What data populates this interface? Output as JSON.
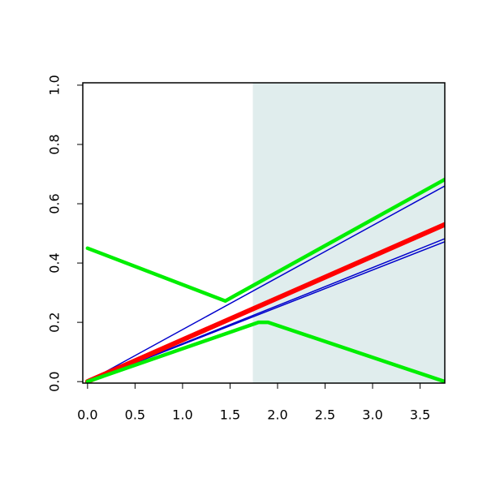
{
  "chart_data": {
    "type": "line",
    "xlim": [
      -0.05,
      3.76
    ],
    "ylim": [
      -0.005,
      1.008
    ],
    "xticks": [
      {
        "value": 0,
        "label": "0.0"
      },
      0.5,
      {
        "value": 1,
        "label": "1.0"
      },
      1.5,
      {
        "value": 2,
        "label": "2.0"
      },
      2.5,
      {
        "value": 3,
        "label": "3.0"
      },
      3.5
    ],
    "yticks": [
      {
        "value": 0,
        "label": "0.0"
      },
      0.2,
      0.4,
      0.6,
      0.8,
      {
        "value": 1,
        "label": "1.0"
      }
    ],
    "shaded_span": [
      1.74,
      3.76
    ],
    "shade_color": "#e0eded",
    "series": [
      {
        "color": "#0000cc",
        "linewidth": 1.5,
        "x": [
          0,
          3.76
        ],
        "values": [
          0,
          0.66
        ]
      },
      {
        "color": "#0000cc",
        "linewidth": 1.5,
        "x": [
          0,
          3.76
        ],
        "values": [
          0,
          0.482
        ]
      },
      {
        "color": "#0000cc",
        "linewidth": 1.5,
        "x": [
          0,
          3.76
        ],
        "values": [
          0,
          0.472
        ]
      },
      {
        "color": "#ff0000",
        "linewidth": 6,
        "x": [
          0,
          3.76
        ],
        "values": [
          0,
          0.53
        ]
      },
      {
        "color": "#00ee00",
        "linewidth": 4.5,
        "x": [
          0,
          1.45,
          1.55,
          3.76
        ],
        "values": [
          0.45,
          0.272,
          0.29,
          0.682
        ]
      },
      {
        "color": "#00ee00",
        "linewidth": 4.5,
        "x": [
          0,
          1.8,
          1.9,
          3.76
        ],
        "values": [
          0,
          0.2,
          0.2,
          0.0
        ]
      }
    ]
  }
}
